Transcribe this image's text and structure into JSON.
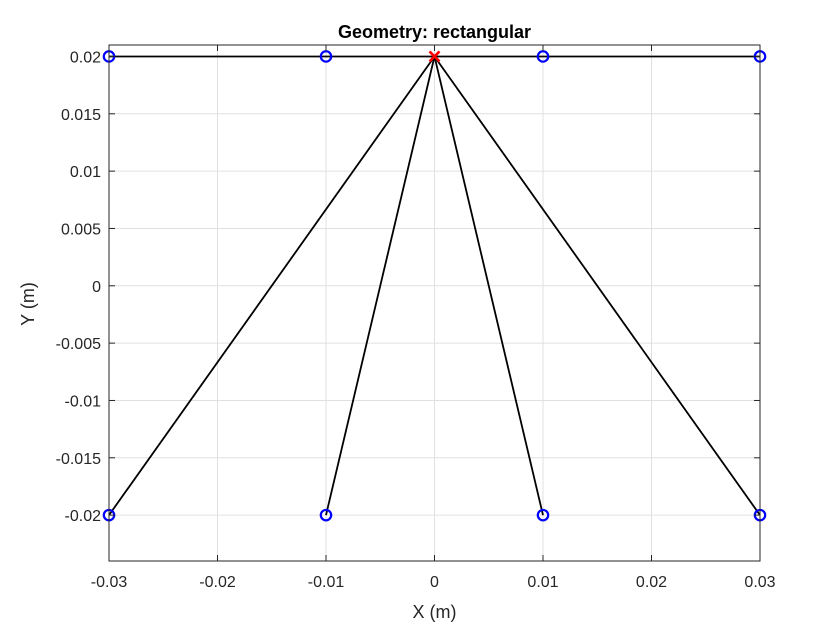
{
  "chart_data": {
    "type": "scatter",
    "title": "Geometry: rectangular",
    "xlabel": "X (m)",
    "ylabel": "Y (m)",
    "xlim": [
      -0.03,
      0.03
    ],
    "ylim": [
      -0.024,
      0.021
    ],
    "x_ticks": [
      -0.03,
      -0.02,
      -0.01,
      0,
      0.01,
      0.02,
      0.03
    ],
    "x_tick_labels": [
      "-0.03",
      "-0.02",
      "-0.01",
      "0",
      "0.01",
      "0.02",
      "0.03"
    ],
    "y_ticks": [
      -0.02,
      -0.015,
      -0.01,
      -0.005,
      0,
      0.005,
      0.01,
      0.015,
      0.02
    ],
    "y_tick_labels": [
      "-0.02",
      "-0.015",
      "-0.01",
      "-0.005",
      "0",
      "0.005",
      "0.01",
      "0.015",
      "0.02"
    ],
    "grid": true,
    "colors": {
      "markers": "#0000ff",
      "source": "#ff0000",
      "lines": "#000000",
      "grid": "#e0e0e0",
      "axes": "#262626"
    },
    "source_point": {
      "x": 0,
      "y": 0.02,
      "marker": "x"
    },
    "top_edge": {
      "x": [
        -0.03,
        0.03
      ],
      "y": [
        0.02,
        0.02
      ]
    },
    "points": [
      {
        "x": -0.03,
        "y": 0.02
      },
      {
        "x": -0.01,
        "y": 0.02
      },
      {
        "x": 0.01,
        "y": 0.02
      },
      {
        "x": 0.03,
        "y": 0.02
      },
      {
        "x": -0.03,
        "y": -0.02
      },
      {
        "x": -0.01,
        "y": -0.02
      },
      {
        "x": 0.01,
        "y": -0.02
      },
      {
        "x": 0.03,
        "y": -0.02
      }
    ],
    "rays": [
      {
        "x": [
          0,
          -0.03
        ],
        "y": [
          0.02,
          -0.02
        ]
      },
      {
        "x": [
          0,
          -0.01
        ],
        "y": [
          0.02,
          -0.02
        ]
      },
      {
        "x": [
          0,
          0.01
        ],
        "y": [
          0.02,
          -0.02
        ]
      },
      {
        "x": [
          0,
          0.03
        ],
        "y": [
          0.02,
          -0.02
        ]
      }
    ]
  }
}
